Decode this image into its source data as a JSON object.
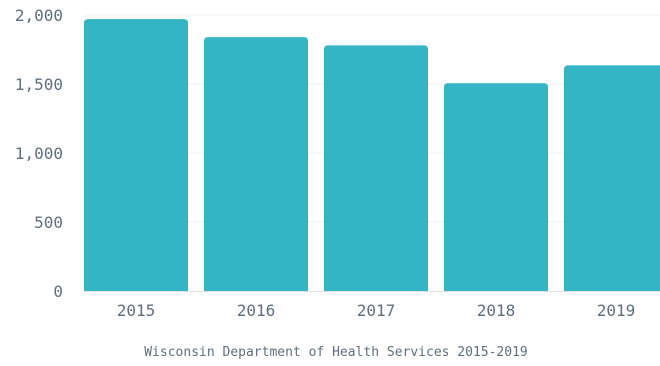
{
  "chart_data": {
    "type": "bar",
    "categories": [
      "2015",
      "2016",
      "2017",
      "2018",
      "2019"
    ],
    "values": [
      1970,
      1840,
      1780,
      1505,
      1635
    ],
    "ylim": [
      0,
      2000
    ],
    "yticks": [
      0,
      500,
      1000,
      1500,
      2000
    ],
    "ytick_labels": [
      "0",
      "500",
      "1,000",
      "1,500",
      "2,000"
    ],
    "grid": true,
    "bar_color": "#33b5c4",
    "caption": "Wisconsin Department of Health Services 2015-2019"
  }
}
